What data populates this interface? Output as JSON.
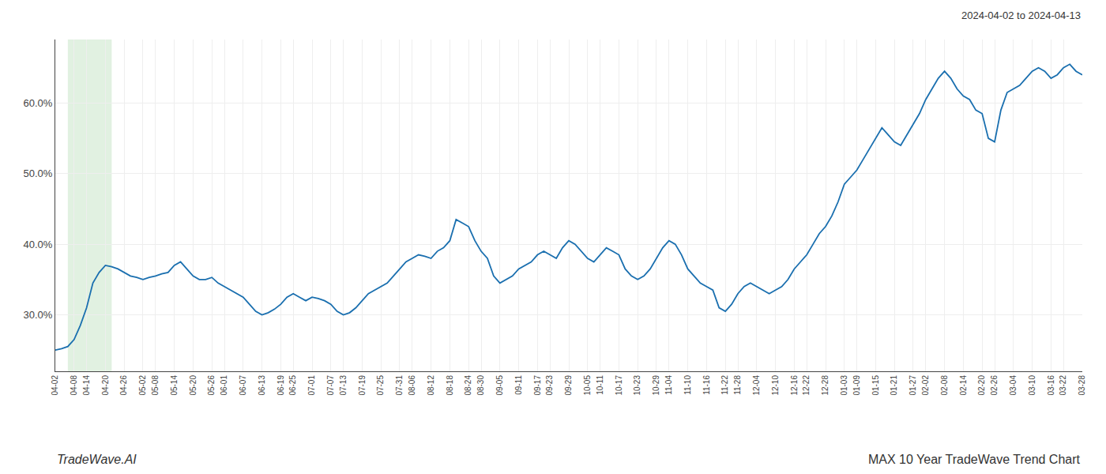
{
  "chart_data": {
    "type": "line",
    "annotations": [
      "2024-04-02 to 2024-04-13",
      "TradeWave.AI",
      "MAX 10 Year TradeWave Trend Chart"
    ],
    "categories": [
      "04-02",
      null,
      null,
      "04-08",
      null,
      "04-14",
      null,
      null,
      "04-20",
      null,
      null,
      "04-26",
      null,
      null,
      "05-02",
      null,
      "05-08",
      null,
      null,
      "05-14",
      null,
      null,
      "05-20",
      null,
      null,
      "05-26",
      null,
      "06-01",
      null,
      null,
      "06-07",
      null,
      null,
      "06-13",
      null,
      null,
      "06-19",
      null,
      "06-25",
      null,
      null,
      "07-01",
      null,
      null,
      "07-07",
      null,
      "07-13",
      null,
      null,
      "07-19",
      null,
      null,
      "07-25",
      null,
      null,
      "07-31",
      null,
      "08-06",
      null,
      null,
      "08-12",
      null,
      null,
      "08-18",
      null,
      null,
      "08-24",
      null,
      "08-30",
      null,
      null,
      "09-05",
      null,
      null,
      "09-11",
      null,
      null,
      "09-17",
      null,
      "09-23",
      null,
      null,
      "09-29",
      null,
      null,
      "10-05",
      null,
      "10-11",
      null,
      null,
      "10-17",
      null,
      null,
      "10-23",
      null,
      null,
      "10-29",
      null,
      "11-04",
      null,
      null,
      "11-10",
      null,
      null,
      "11-16",
      null,
      null,
      "11-22",
      null,
      "11-28",
      null,
      null,
      "12-04",
      null,
      null,
      "12-10",
      null,
      null,
      "12-16",
      null,
      "12-22",
      null,
      null,
      "12-28",
      null,
      null,
      "01-03",
      null,
      "01-09",
      null,
      null,
      "01-15",
      null,
      null,
      "01-21",
      null,
      null,
      "01-27",
      null,
      "02-02",
      null,
      null,
      "02-08",
      null,
      null,
      "02-14",
      null,
      null,
      "02-20",
      null,
      "02-26",
      null,
      null,
      "03-04",
      null,
      null,
      "03-10",
      null,
      null,
      "03-16",
      null,
      "03-22",
      null,
      null,
      "03-28"
    ],
    "values": [
      25.0,
      25.2,
      25.5,
      26.5,
      28.5,
      31.0,
      34.5,
      36.0,
      37.0,
      36.8,
      36.5,
      36.0,
      35.5,
      35.3,
      35.0,
      35.3,
      35.5,
      35.8,
      36.0,
      37.0,
      37.5,
      36.5,
      35.5,
      35.0,
      35.0,
      35.3,
      34.5,
      34.0,
      33.5,
      33.0,
      32.5,
      31.5,
      30.5,
      30.0,
      30.3,
      30.8,
      31.5,
      32.5,
      33.0,
      32.5,
      32.0,
      32.5,
      32.3,
      32.0,
      31.5,
      30.5,
      30.0,
      30.3,
      31.0,
      32.0,
      33.0,
      33.5,
      34.0,
      34.5,
      35.5,
      36.5,
      37.5,
      38.0,
      38.5,
      38.3,
      38.0,
      39.0,
      39.5,
      40.5,
      43.5,
      43.0,
      42.5,
      40.5,
      39.0,
      38.0,
      35.5,
      34.5,
      35.0,
      35.5,
      36.5,
      37.0,
      37.5,
      38.5,
      39.0,
      38.5,
      38.0,
      39.5,
      40.5,
      40.0,
      39.0,
      38.0,
      37.5,
      38.5,
      39.5,
      39.0,
      38.5,
      36.5,
      35.5,
      35.0,
      35.5,
      36.5,
      38.0,
      39.5,
      40.5,
      40.0,
      38.5,
      36.5,
      35.5,
      34.5,
      34.0,
      33.5,
      31.0,
      30.5,
      31.5,
      33.0,
      34.0,
      34.5,
      34.0,
      33.5,
      33.0,
      33.5,
      34.0,
      35.0,
      36.5,
      37.5,
      38.5,
      40.0,
      41.5,
      42.5,
      44.0,
      46.0,
      48.5,
      49.5,
      50.5,
      52.0,
      53.5,
      55.0,
      56.5,
      55.5,
      54.5,
      54.0,
      55.5,
      57.0,
      58.5,
      60.5,
      62.0,
      63.5,
      64.5,
      63.5,
      62.0,
      61.0,
      60.5,
      59.0,
      58.5,
      55.0,
      54.5,
      59.0,
      61.5,
      62.0,
      62.5,
      63.5,
      64.5,
      65.0,
      64.5,
      63.5,
      64.0,
      65.0,
      65.5,
      64.5,
      64.0
    ],
    "color": "#1a6faf",
    "highlight": {
      "start": "04-08",
      "end": "04-20",
      "color": "#c8e6c9"
    },
    "ylim": [
      22,
      69
    ],
    "yticks": [
      {
        "value": 30.0,
        "label": "30.0%"
      },
      {
        "value": 40.0,
        "label": "40.0%"
      },
      {
        "value": 50.0,
        "label": "50.0%"
      },
      {
        "value": 60.0,
        "label": "60.0%"
      }
    ],
    "grid": true
  }
}
